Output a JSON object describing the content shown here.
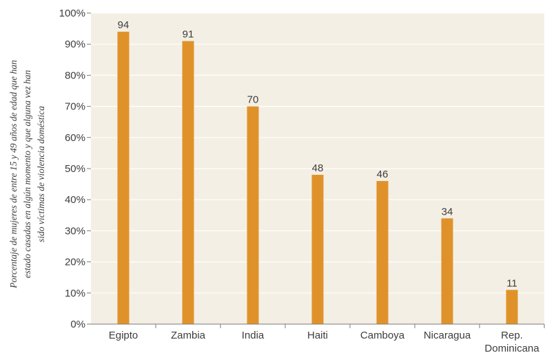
{
  "chart_data": {
    "type": "bar",
    "title": "",
    "xlabel": "",
    "ylabel_lines": [
      "Porcentaje de mujeres de entre 15 y 49 años de edad que han",
      "estado casadas en algún momento y que alguna vez han",
      "sido víctimas de violencia doméstica"
    ],
    "categories": [
      [
        "Egipto"
      ],
      [
        "Zambia"
      ],
      [
        "India"
      ],
      [
        "Haiti"
      ],
      [
        "Camboya"
      ],
      [
        "Nicaragua"
      ],
      [
        "Rep.",
        "Dominicana"
      ]
    ],
    "values": [
      94,
      91,
      70,
      48,
      46,
      34,
      11
    ],
    "value_labels": [
      "94",
      "91",
      "70",
      "48",
      "46",
      "34",
      "11"
    ],
    "ylim": [
      0,
      100
    ],
    "yticks": [
      0,
      10,
      20,
      30,
      40,
      50,
      60,
      70,
      80,
      90,
      100
    ],
    "ytick_labels": [
      "0%",
      "10%",
      "20%",
      "30%",
      "40%",
      "50%",
      "60%",
      "70%",
      "80%",
      "90%",
      "100%"
    ],
    "grid": true,
    "legend": "none",
    "colors": {
      "bar": "#e0922a",
      "plot_background": "#f4efe4"
    }
  }
}
